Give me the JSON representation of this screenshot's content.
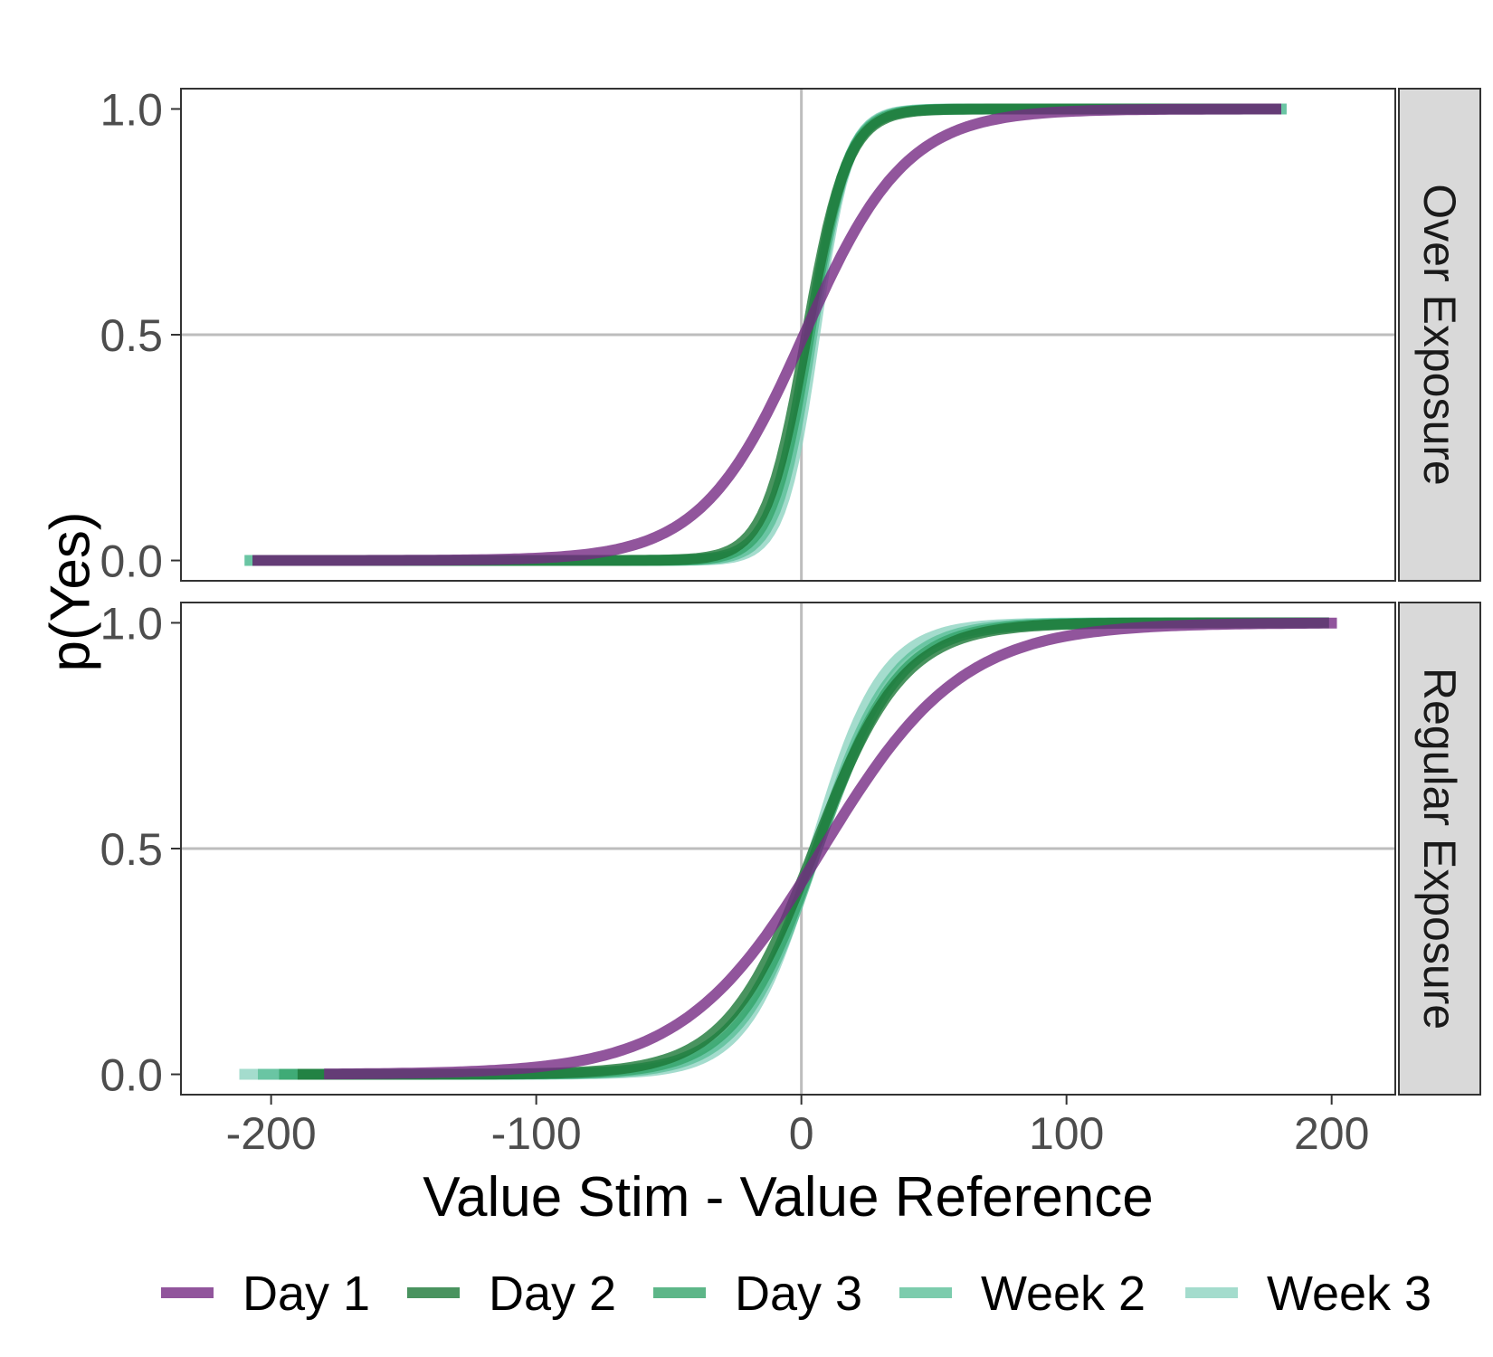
{
  "chart_data": {
    "type": "line",
    "xlabel": "Value Stim - Value Reference",
    "ylabel": "p(Yes)",
    "xlim": [
      -234,
      224
    ],
    "ylim": [
      -0.045,
      1.045
    ],
    "x_ticks": [
      -200,
      -100,
      0,
      100,
      200
    ],
    "y_ticks": [
      0.0,
      0.5,
      1.0
    ],
    "x_tick_labels": [
      "-200",
      "-100",
      "0",
      "100",
      "200"
    ],
    "y_tick_labels": [
      "0.0",
      "0.5",
      "1.0"
    ],
    "grid": false,
    "reference_lines": {
      "x": 0,
      "y": 0.5
    },
    "legend_position": "bottom",
    "series_styles": [
      {
        "name": "Day 1",
        "color": "#762a83",
        "opacity": 0.8
      },
      {
        "name": "Day 2",
        "color": "#1b7837",
        "opacity": 0.8
      },
      {
        "name": "Day 3",
        "color": "#35a46a",
        "opacity": 0.8
      },
      {
        "name": "Week 2",
        "color": "#5bbf98",
        "opacity": 0.8
      },
      {
        "name": "Week 3",
        "color": "#8dd3c0",
        "opacity": 0.8
      }
    ],
    "panels": [
      {
        "label": "Over Exposure",
        "series": [
          {
            "name": "Day 1",
            "x_range": [
              -207,
              181
            ],
            "midpoint": 1,
            "slope": 0.052
          },
          {
            "name": "Day 2",
            "x_range": [
              -207,
              181
            ],
            "midpoint": 2,
            "slope": 0.13
          },
          {
            "name": "Day 3",
            "x_range": [
              -207,
              181
            ],
            "midpoint": 3,
            "slope": 0.14
          },
          {
            "name": "Week 2",
            "x_range": [
              -210,
              183
            ],
            "midpoint": 4,
            "slope": 0.15
          },
          {
            "name": "Week 3",
            "x_range": [
              -210,
              183
            ],
            "midpoint": 5,
            "slope": 0.16
          }
        ]
      },
      {
        "label": "Regular Exposure",
        "series": [
          {
            "name": "Day 1",
            "x_range": [
              -180,
              202
            ],
            "midpoint": 8,
            "slope": 0.038
          },
          {
            "name": "Day 2",
            "x_range": [
              -190,
              199
            ],
            "midpoint": 5,
            "slope": 0.06
          },
          {
            "name": "Day 3",
            "x_range": [
              -197,
              199
            ],
            "midpoint": 6,
            "slope": 0.065
          },
          {
            "name": "Week 2",
            "x_range": [
              -205,
              199
            ],
            "midpoint": 6,
            "slope": 0.07
          },
          {
            "name": "Week 3",
            "x_range": [
              -212,
              199
            ],
            "midpoint": 5,
            "slope": 0.078
          }
        ]
      }
    ]
  }
}
